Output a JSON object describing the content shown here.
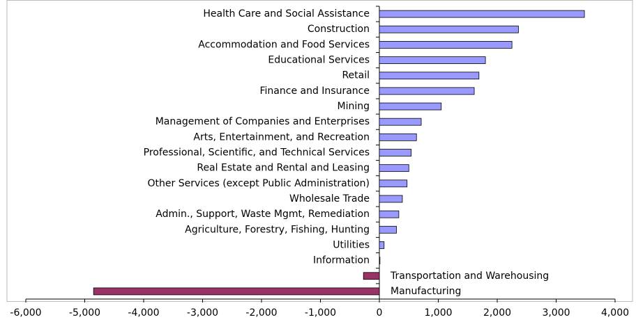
{
  "chart_data": {
    "type": "bar",
    "orientation": "horizontal",
    "categories": [
      "Health Care and Social Assistance",
      "Construction",
      "Accommodation and Food Services",
      "Educational Services",
      "Retail",
      "Finance and Insurance",
      "Mining",
      "Management of Companies and Enterprises",
      "Arts, Entertainment, and Recreation",
      "Professional, Scientific, and Technical Services",
      "Real Estate and Rental and Leasing",
      "Other Services (except Public Administration)",
      "Wholesale Trade",
      "Admin., Support, Waste Mgmt, Remediation",
      "Agriculture, Forestry, Fishing, Hunting",
      "Utilities",
      "Information",
      "Transportation and Warehousing",
      "Manufacturing"
    ],
    "values": [
      3480,
      2360,
      2250,
      1800,
      1690,
      1610,
      1050,
      710,
      630,
      540,
      500,
      470,
      390,
      330,
      290,
      80,
      10,
      -270,
      -4850
    ],
    "color": "#9999ff",
    "negative_color": "#993366",
    "xlim": [
      -6000,
      4000
    ],
    "xticks": [
      {
        "value": -6000,
        "label": "-6,000"
      },
      {
        "value": -5000,
        "label": "-5,000"
      },
      {
        "value": -4000,
        "label": "-4,000"
      },
      {
        "value": -3000,
        "label": "-3,000"
      },
      {
        "value": -2000,
        "label": "-2,000"
      },
      {
        "value": -1000,
        "label": "-1,000"
      },
      0,
      {
        "value": 1000,
        "label": "1,000"
      },
      {
        "value": 2000,
        "label": "2,000"
      },
      {
        "value": 3000,
        "label": "3,000"
      },
      {
        "value": 4000,
        "label": "4,000"
      }
    ],
    "grid": false
  }
}
